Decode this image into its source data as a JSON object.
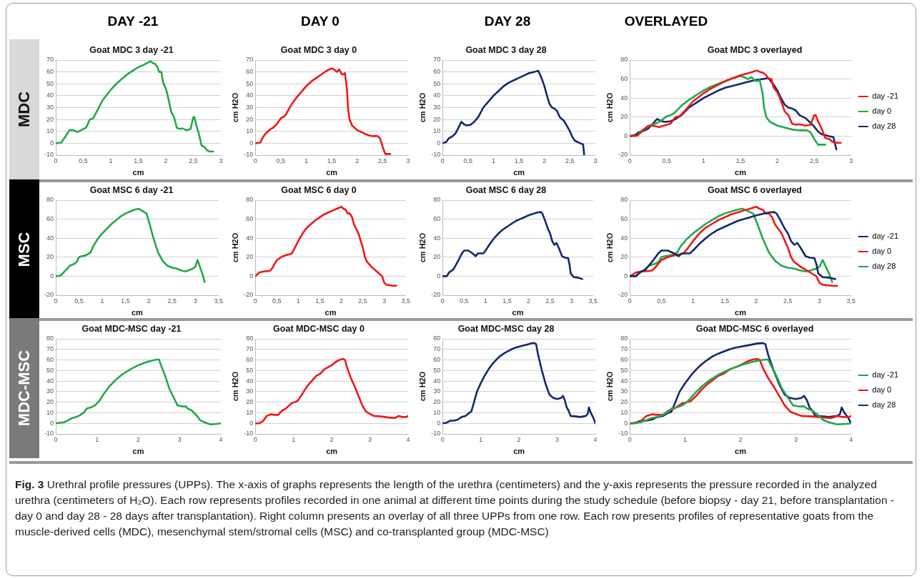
{
  "chart_data": [
    {
      "type": "line",
      "title": "Goat MDC 3 day -21",
      "xlabel": "cm",
      "xlim": [
        0,
        3
      ],
      "ylim": [
        -10,
        70
      ],
      "xticks": [
        0,
        {
          "value": 0.5,
          "label": "0,5"
        },
        1,
        {
          "value": 1.5,
          "label": "1,5"
        },
        2,
        {
          "value": 2.5,
          "label": "2,5"
        },
        3
      ],
      "yticks": [
        -10,
        0,
        10,
        20,
        30,
        40,
        50,
        60,
        70
      ],
      "grid": "y",
      "marker": "none",
      "line_style": "solid",
      "series": [
        {
          "color": "#22a84a",
          "x": [
            0,
            0.1,
            0.18,
            0.25,
            0.3,
            0.4,
            0.5,
            0.55,
            0.62,
            0.68,
            0.75,
            0.85,
            1,
            1.1,
            1.2,
            1.3,
            1.4,
            1.5,
            1.6,
            1.68,
            1.72,
            1.78,
            1.8,
            1.85,
            1.88,
            1.92,
            1.95,
            2,
            2.03,
            2.1,
            2.15,
            2.2,
            2.25,
            2.3,
            2.38,
            2.45,
            2.5,
            2.52,
            2.55,
            2.6,
            2.65,
            2.7,
            2.75,
            2.8,
            2.86
          ],
          "values": [
            0,
            0.5,
            6,
            11,
            11,
            9.5,
            12,
            13,
            20,
            21,
            27,
            36,
            45,
            50,
            54,
            58,
            61,
            64,
            66,
            68,
            69,
            67,
            67,
            64,
            60,
            60,
            51,
            46,
            41,
            26,
            22,
            13,
            12,
            12.5,
            11,
            12,
            22,
            22,
            16,
            8,
            -2,
            -3,
            -6,
            -7,
            -7
          ]
        }
      ]
    },
    {
      "type": "line",
      "title": "Goat MDC 3 day 0",
      "xlabel": "cm",
      "ylabel": "cm H2O",
      "xlim": [
        0,
        3
      ],
      "ylim": [
        -10,
        70
      ],
      "xticks": [
        0,
        {
          "value": 0.5,
          "label": "0,5"
        },
        1,
        {
          "value": 1.5,
          "label": "1,5"
        },
        2,
        {
          "value": 2.5,
          "label": "2,5"
        },
        3
      ],
      "yticks": [
        -10,
        0,
        10,
        20,
        30,
        40,
        50,
        60,
        70
      ],
      "grid": "y",
      "marker": "none",
      "line_style": "solid",
      "series": [
        {
          "color": "#f01818",
          "x": [
            0,
            0.1,
            0.15,
            0.2,
            0.3,
            0.35,
            0.42,
            0.5,
            0.55,
            0.6,
            0.7,
            0.8,
            0.9,
            1,
            1.1,
            1.2,
            1.3,
            1.4,
            1.5,
            1.55,
            1.6,
            1.65,
            1.7,
            1.73,
            1.76,
            1.8,
            1.82,
            1.85,
            1.9,
            2,
            2.1,
            2.2,
            2.3,
            2.4,
            2.45,
            2.5,
            2.55,
            2.6,
            2.65
          ],
          "values": [
            0,
            0.5,
            5,
            8,
            12,
            13,
            16,
            21,
            22,
            24,
            32,
            38,
            43,
            48,
            52,
            55,
            58,
            61,
            63,
            62,
            60,
            62,
            58,
            58,
            59,
            45,
            30,
            20,
            15,
            11,
            9,
            7,
            6,
            6,
            4,
            -3,
            -9,
            -9,
            -9
          ]
        }
      ]
    },
    {
      "type": "line",
      "title": "Goat MDC 3 day 28",
      "xlabel": "cm",
      "ylabel": "cm H2O",
      "xlim": [
        0,
        3
      ],
      "ylim": [
        -10,
        70
      ],
      "xticks": [
        0,
        {
          "value": 0.5,
          "label": "0,5"
        },
        1,
        {
          "value": 1.5,
          "label": "1,5"
        },
        2,
        {
          "value": 2.5,
          "label": "2,5"
        },
        3
      ],
      "yticks": [
        -10,
        0,
        10,
        20,
        30,
        40,
        50,
        60,
        70
      ],
      "grid": "y",
      "marker": "none",
      "line_style": "solid",
      "series": [
        {
          "color": "#14286e",
          "x": [
            0,
            0.07,
            0.12,
            0.2,
            0.25,
            0.3,
            0.37,
            0.42,
            0.47,
            0.55,
            0.62,
            0.7,
            0.8,
            0.9,
            1,
            1.1,
            1.2,
            1.3,
            1.4,
            1.5,
            1.6,
            1.7,
            1.8,
            1.88,
            1.92,
            1.95,
            2,
            2.05,
            2.1,
            2.15,
            2.2,
            2.25,
            2.3,
            2.38,
            2.45,
            2.5,
            2.55,
            2.6,
            2.7,
            2.76,
            2.78
          ],
          "values": [
            0,
            1,
            4,
            6,
            8,
            12,
            18,
            16,
            15,
            15.5,
            18,
            22,
            30,
            35,
            40,
            44,
            48,
            51,
            53,
            55,
            57,
            59,
            60,
            61,
            57,
            54,
            48,
            40,
            33,
            30,
            29,
            27,
            22,
            19,
            14,
            10,
            5,
            2,
            0,
            -1,
            -10
          ]
        }
      ]
    },
    {
      "type": "line",
      "title": "Goat MDC 3 overlayed",
      "xlabel": "cm",
      "ylabel": "cm H2O",
      "xlim": [
        0,
        3
      ],
      "ylim": [
        -20,
        80
      ],
      "xticks": [
        0,
        {
          "value": 0.5,
          "label": "0,5"
        },
        1,
        {
          "value": 1.5,
          "label": "1,5"
        },
        2,
        {
          "value": 2.5,
          "label": "2,5"
        },
        3
      ],
      "yticks": [
        -20,
        0,
        20,
        40,
        60,
        80
      ],
      "grid": "y",
      "marker": "none",
      "line_style": "solid",
      "legend": "right",
      "series": [
        {
          "name": "day -21",
          "color": "#f01818",
          "x": [
            0,
            0.1,
            0.18,
            0.25,
            0.3,
            0.4,
            0.5,
            0.55,
            0.62,
            0.68,
            0.75,
            0.85,
            1,
            1.1,
            1.2,
            1.3,
            1.4,
            1.5,
            1.6,
            1.68,
            1.72,
            1.78,
            1.8,
            1.85,
            1.88,
            1.92,
            1.95,
            2,
            2.03,
            2.1,
            2.15,
            2.2,
            2.25,
            2.3,
            2.38,
            2.45,
            2.5,
            2.52,
            2.55,
            2.6,
            2.65,
            2.7,
            2.75,
            2.8,
            2.86
          ],
          "values": [
            0,
            0.5,
            6,
            11,
            11,
            9.5,
            12,
            13,
            20,
            21,
            27,
            36,
            45,
            50,
            54,
            58,
            61,
            64,
            66,
            68,
            69,
            67,
            67,
            64,
            60,
            60,
            51,
            46,
            41,
            26,
            22,
            13,
            12,
            12.5,
            11,
            12,
            22,
            22,
            16,
            8,
            -2,
            -3,
            -6,
            -7,
            -7
          ]
        },
        {
          "name": "day 0",
          "color": "#22a84a",
          "x": [
            0,
            0.1,
            0.15,
            0.2,
            0.3,
            0.35,
            0.42,
            0.5,
            0.55,
            0.6,
            0.7,
            0.8,
            0.9,
            1,
            1.1,
            1.2,
            1.3,
            1.4,
            1.5,
            1.55,
            1.6,
            1.65,
            1.7,
            1.73,
            1.76,
            1.8,
            1.82,
            1.85,
            1.9,
            2,
            2.1,
            2.2,
            2.3,
            2.4,
            2.45,
            2.5,
            2.55,
            2.6,
            2.65
          ],
          "values": [
            0,
            0.5,
            5,
            8,
            12,
            13,
            16,
            21,
            22,
            24,
            32,
            38,
            43,
            48,
            52,
            55,
            58,
            61,
            63,
            62,
            60,
            62,
            58,
            58,
            59,
            45,
            30,
            20,
            15,
            11,
            9,
            7,
            6,
            6,
            4,
            -3,
            -9,
            -9,
            -9
          ]
        },
        {
          "name": "day 28",
          "color": "#14286e",
          "x": [
            0,
            0.07,
            0.12,
            0.2,
            0.25,
            0.3,
            0.37,
            0.42,
            0.47,
            0.55,
            0.62,
            0.7,
            0.8,
            0.9,
            1,
            1.1,
            1.2,
            1.3,
            1.4,
            1.5,
            1.6,
            1.7,
            1.8,
            1.88,
            1.92,
            1.95,
            2,
            2.05,
            2.1,
            2.15,
            2.2,
            2.25,
            2.3,
            2.38,
            2.45,
            2.5,
            2.55,
            2.6,
            2.7,
            2.76,
            2.8
          ],
          "values": [
            0,
            1,
            4,
            6,
            8,
            12,
            18,
            16,
            15,
            15.5,
            18,
            22,
            30,
            35,
            40,
            44,
            48,
            51,
            53,
            55,
            57,
            59,
            60,
            61,
            57,
            54,
            48,
            40,
            33,
            30,
            29,
            27,
            22,
            19,
            14,
            10,
            5,
            2,
            0,
            -1,
            -14
          ]
        }
      ]
    },
    {
      "type": "line",
      "title": "Goat MSC 6 day -21",
      "xlabel": "cm",
      "xlim": [
        0,
        3.5
      ],
      "ylim": [
        -20,
        80
      ],
      "xticks": [
        0,
        {
          "value": 0.5,
          "label": "0,5"
        },
        1,
        {
          "value": 1.5,
          "label": "1,5"
        },
        2,
        {
          "value": 2.5,
          "label": "2,5"
        },
        3,
        {
          "value": 3.5,
          "label": "3,5"
        }
      ],
      "yticks": [
        -20,
        0,
        20,
        40,
        60,
        80
      ],
      "grid": "y",
      "marker": "none",
      "line_style": "solid",
      "series": [
        {
          "color": "#22a84a",
          "x": [
            0,
            0.1,
            0.15,
            0.25,
            0.3,
            0.4,
            0.45,
            0.5,
            0.55,
            0.65,
            0.75,
            0.8,
            0.9,
            1,
            1.1,
            1.2,
            1.3,
            1.4,
            1.5,
            1.6,
            1.7,
            1.78,
            1.85,
            1.95,
            2,
            2.1,
            2.2,
            2.3,
            2.4,
            2.5,
            2.6,
            2.7,
            2.78,
            2.85,
            2.95,
            3,
            3.05,
            3.1,
            3.15,
            3.2
          ],
          "values": [
            0,
            0.5,
            3,
            8,
            11,
            13,
            15,
            20,
            21,
            22,
            25,
            31,
            39,
            45,
            50,
            55,
            59,
            63,
            66,
            68,
            70,
            71,
            69,
            66,
            58,
            40,
            25,
            16,
            11,
            9,
            8,
            6,
            5,
            6,
            8,
            10,
            17,
            10,
            3,
            -6
          ]
        }
      ]
    },
    {
      "type": "line",
      "title": "Goat MSC 6 day 0",
      "xlabel": "cm",
      "ylabel": "cm H2O",
      "xlim": [
        0,
        3.5
      ],
      "ylim": [
        -20,
        80
      ],
      "xticks": [
        0,
        {
          "value": 0.5,
          "label": "0,5"
        },
        1,
        {
          "value": 1.5,
          "label": "1,5"
        },
        2,
        {
          "value": 2.5,
          "label": "2,5"
        },
        3,
        {
          "value": 3.5,
          "label": "3,5"
        }
      ],
      "yticks": [
        -20,
        0,
        20,
        40,
        60,
        80
      ],
      "grid": "y",
      "marker": "none",
      "line_style": "solid",
      "series": [
        {
          "color": "#f01818",
          "x": [
            0,
            0.05,
            0.1,
            0.2,
            0.3,
            0.35,
            0.4,
            0.5,
            0.6,
            0.7,
            0.8,
            0.85,
            0.9,
            1,
            1.1,
            1.2,
            1.3,
            1.4,
            1.5,
            1.6,
            1.7,
            1.8,
            1.9,
            2,
            2.05,
            2.1,
            2.15,
            2.2,
            2.25,
            2.3,
            2.4,
            2.5,
            2.55,
            2.6,
            2.7,
            2.8,
            2.9,
            2.95,
            3,
            3.05,
            3.2,
            3.28
          ],
          "values": [
            0,
            2,
            4,
            5,
            5.5,
            6,
            9,
            17,
            20,
            22,
            23,
            24,
            28,
            37,
            45,
            51,
            55,
            59,
            62,
            65,
            67,
            69,
            71,
            73,
            71,
            70,
            66,
            66,
            62,
            54,
            45,
            30,
            20,
            15,
            10,
            6,
            2,
            0,
            -7,
            -9,
            -10,
            -10
          ]
        }
      ]
    },
    {
      "type": "line",
      "title": "Goat MSC 6 day 28",
      "xlabel": "cm",
      "ylabel": "cm H2O",
      "xlim": [
        0,
        3.5
      ],
      "ylim": [
        -20,
        80
      ],
      "xticks": [
        0,
        {
          "value": 0.5,
          "label": "0,5"
        },
        1,
        {
          "value": 1.5,
          "label": "1,5"
        },
        2,
        {
          "value": 2.5,
          "label": "2,5"
        },
        3,
        {
          "value": 3.5,
          "label": "3,5"
        }
      ],
      "yticks": [
        -20,
        0,
        20,
        40,
        60,
        80
      ],
      "grid": "y",
      "marker": "none",
      "line_style": "solid",
      "series": [
        {
          "color": "#14286e",
          "x": [
            0,
            0.1,
            0.15,
            0.25,
            0.35,
            0.45,
            0.5,
            0.6,
            0.7,
            0.77,
            0.82,
            0.9,
            0.95,
            1,
            1.1,
            1.2,
            1.3,
            1.4,
            1.5,
            1.6,
            1.7,
            1.8,
            1.9,
            2,
            2.1,
            2.2,
            2.28,
            2.32,
            2.38,
            2.45,
            2.5,
            2.55,
            2.6,
            2.65,
            2.7,
            2.78,
            2.85,
            2.92,
            2.95,
            2.98,
            3.05,
            3.15,
            3.25
          ],
          "values": [
            0,
            0,
            4,
            7,
            15,
            24,
            27,
            27,
            24,
            21,
            24,
            24,
            24,
            27,
            34,
            40,
            45,
            49,
            52,
            55,
            58,
            60,
            62,
            64,
            65.5,
            67,
            67.5,
            66,
            59,
            50,
            45,
            37,
            33,
            35,
            30,
            21,
            19.5,
            19,
            13,
            3,
            -1,
            -1.5,
            -3
          ]
        }
      ]
    },
    {
      "type": "line",
      "title": "Goat MSC 6 overlayed",
      "xlabel": "cm",
      "ylabel": "cm H2O",
      "xlim": [
        0,
        3.5
      ],
      "ylim": [
        -20,
        80
      ],
      "xticks": [
        0,
        {
          "value": 0.5,
          "label": "0,5"
        },
        1,
        {
          "value": 1.5,
          "label": "1,5"
        },
        2,
        {
          "value": 2.5,
          "label": "2,5"
        },
        3,
        {
          "value": 3.5,
          "label": "3,5"
        }
      ],
      "yticks": [
        -20,
        0,
        20,
        40,
        60,
        80
      ],
      "grid": "y",
      "marker": "none",
      "line_style": "solid",
      "legend": "right",
      "series": [
        {
          "name": "day -21",
          "color": "#14286e",
          "x": [
            0,
            0.1,
            0.15,
            0.25,
            0.35,
            0.45,
            0.5,
            0.6,
            0.7,
            0.77,
            0.82,
            0.9,
            0.95,
            1,
            1.1,
            1.2,
            1.3,
            1.4,
            1.5,
            1.6,
            1.7,
            1.8,
            1.9,
            2,
            2.1,
            2.2,
            2.28,
            2.32,
            2.38,
            2.45,
            2.5,
            2.55,
            2.6,
            2.65,
            2.7,
            2.78,
            2.85,
            2.92,
            2.95,
            2.98,
            3.05,
            3.15,
            3.25
          ],
          "values": [
            0,
            0,
            4,
            7,
            15,
            24,
            27,
            27,
            24,
            21,
            24,
            24,
            24,
            27,
            34,
            40,
            45,
            49,
            52,
            55,
            58,
            60,
            62,
            64,
            65.5,
            67,
            67.5,
            66,
            59,
            50,
            45,
            37,
            33,
            35,
            30,
            21,
            19.5,
            19,
            13,
            3,
            -1,
            -1.5,
            -3
          ]
        },
        {
          "name": "day 0",
          "color": "#f01818",
          "x": [
            0,
            0.05,
            0.1,
            0.2,
            0.3,
            0.35,
            0.4,
            0.5,
            0.6,
            0.7,
            0.8,
            0.85,
            0.9,
            1,
            1.1,
            1.2,
            1.3,
            1.4,
            1.5,
            1.6,
            1.7,
            1.8,
            1.9,
            2,
            2.05,
            2.1,
            2.15,
            2.2,
            2.25,
            2.3,
            2.4,
            2.5,
            2.55,
            2.6,
            2.7,
            2.8,
            2.9,
            2.95,
            3,
            3.05,
            3.2,
            3.28
          ],
          "values": [
            0,
            2,
            4,
            5,
            5.5,
            6,
            9,
            17,
            20,
            22,
            23,
            24,
            28,
            37,
            45,
            51,
            55,
            59,
            62,
            65,
            67,
            69,
            71,
            73,
            71,
            70,
            66,
            66,
            62,
            54,
            45,
            30,
            20,
            15,
            10,
            6,
            2,
            0,
            -7,
            -9,
            -10,
            -10
          ]
        },
        {
          "name": "day 28",
          "color": "#22a84a",
          "x": [
            0,
            0.1,
            0.15,
            0.25,
            0.3,
            0.4,
            0.45,
            0.5,
            0.55,
            0.65,
            0.75,
            0.8,
            0.9,
            1,
            1.1,
            1.2,
            1.3,
            1.4,
            1.5,
            1.6,
            1.7,
            1.78,
            1.85,
            1.95,
            2,
            2.1,
            2.2,
            2.3,
            2.4,
            2.5,
            2.6,
            2.7,
            2.78,
            2.85,
            2.95,
            3,
            3.05,
            3.1,
            3.15,
            3.2
          ],
          "values": [
            0,
            0.5,
            3,
            8,
            11,
            13,
            15,
            20,
            21,
            22,
            25,
            31,
            39,
            45,
            50,
            55,
            59,
            63,
            66,
            68,
            70,
            71,
            69,
            66,
            58,
            40,
            25,
            16,
            11,
            9,
            8,
            6,
            5,
            6,
            8,
            10,
            17,
            10,
            3,
            -6
          ]
        }
      ]
    },
    {
      "type": "line",
      "title": "Goat MDC-MSC day -21",
      "xlabel": "cm",
      "xlim": [
        0,
        4
      ],
      "ylim": [
        -10,
        80
      ],
      "xticks": [
        0,
        1,
        2,
        3,
        4
      ],
      "yticks": [
        -10,
        0,
        10,
        20,
        30,
        40,
        50,
        60,
        70,
        80
      ],
      "grid": "y",
      "marker": "none",
      "line_style": "solid",
      "series": [
        {
          "color": "#22a84a",
          "x": [
            0,
            0.2,
            0.3,
            0.4,
            0.5,
            0.6,
            0.7,
            0.75,
            0.85,
            0.95,
            1.05,
            1.15,
            1.3,
            1.45,
            1.6,
            1.8,
            2,
            2.2,
            2.4,
            2.5,
            2.55,
            2.65,
            2.75,
            2.85,
            2.95,
            3.05,
            3.15,
            3.2,
            3.3,
            3.4,
            3.5,
            3.6,
            3.75,
            3.9,
            4
          ],
          "values": [
            0,
            1,
            3,
            5,
            6,
            8,
            11,
            14,
            15,
            17,
            21,
            27,
            35,
            41,
            46,
            51,
            55,
            58,
            60,
            60.5,
            55,
            45,
            33,
            25,
            17,
            16,
            16,
            14,
            12,
            8,
            3,
            1,
            -1,
            -0.5,
            0
          ]
        }
      ]
    },
    {
      "type": "line",
      "title": "Goat MDC-MSC day 0",
      "xlabel": "cm",
      "ylabel": "cm H2O",
      "xlim": [
        0,
        4
      ],
      "ylim": [
        -10,
        80
      ],
      "xticks": [
        0,
        1,
        2,
        3,
        4
      ],
      "yticks": [
        -10,
        0,
        10,
        20,
        30,
        40,
        50,
        60,
        70,
        80
      ],
      "grid": "y",
      "marker": "none",
      "line_style": "solid",
      "series": [
        {
          "color": "#f01818",
          "x": [
            0,
            0.1,
            0.2,
            0.3,
            0.4,
            0.5,
            0.6,
            0.7,
            0.8,
            0.95,
            1.1,
            1.2,
            1.3,
            1.4,
            1.5,
            1.6,
            1.7,
            1.8,
            1.9,
            2,
            2.1,
            2.2,
            2.3,
            2.35,
            2.4,
            2.5,
            2.6,
            2.7,
            2.8,
            2.9,
            3,
            3.1,
            3.3,
            3.5,
            3.65,
            3.75,
            3.85,
            3.95,
            4
          ],
          "values": [
            0,
            0,
            2,
            7,
            8.5,
            8,
            8,
            12,
            14,
            19,
            21,
            26,
            32,
            37,
            41,
            45,
            47,
            51,
            53,
            55,
            58,
            60,
            61,
            60,
            53,
            43,
            35,
            26,
            17,
            11,
            9,
            7,
            6.5,
            5.5,
            5,
            7,
            6,
            6,
            7
          ]
        }
      ]
    },
    {
      "type": "line",
      "title": "Goat MDC-MSC day 28",
      "xlabel": "cm",
      "ylabel": "cm H2O",
      "xlim": [
        0,
        4
      ],
      "ylim": [
        -10,
        80
      ],
      "xticks": [
        0,
        1,
        2,
        3,
        4
      ],
      "yticks": [
        -10,
        0,
        10,
        20,
        30,
        40,
        50,
        60,
        70,
        80
      ],
      "grid": "y",
      "marker": "none",
      "line_style": "solid",
      "series": [
        {
          "color": "#14286e",
          "x": [
            0,
            0.1,
            0.2,
            0.3,
            0.4,
            0.5,
            0.6,
            0.7,
            0.75,
            0.8,
            0.9,
            1,
            1.1,
            1.2,
            1.3,
            1.4,
            1.5,
            1.6,
            1.7,
            1.8,
            1.9,
            2,
            2.1,
            2.2,
            2.3,
            2.4,
            2.45,
            2.5,
            2.6,
            2.7,
            2.8,
            2.9,
            3,
            3.1,
            3.15,
            3.2,
            3.25,
            3.3,
            3.35,
            3.5,
            3.6,
            3.75,
            3.8,
            3.83,
            3.88,
            3.95,
            4
          ],
          "values": [
            0,
            0.5,
            2.5,
            2.5,
            3.5,
            6,
            7,
            10,
            11,
            17,
            30,
            38,
            45,
            51,
            56,
            60,
            63.5,
            66,
            68,
            70,
            71.5,
            72.5,
            73.5,
            74.5,
            75.5,
            76,
            75,
            65,
            50,
            37,
            27,
            24,
            23,
            24,
            26,
            22,
            15,
            12,
            7,
            6.5,
            6,
            7,
            9,
            15,
            10,
            5,
            0
          ]
        }
      ]
    },
    {
      "type": "line",
      "title": "Goat MDC-MSC 6 overlayed",
      "xlabel": "cm",
      "ylabel": "cm H2O",
      "xlim": [
        0,
        4
      ],
      "ylim": [
        -10,
        80
      ],
      "xticks": [
        0,
        1,
        2,
        3,
        4
      ],
      "yticks": [
        -10,
        0,
        10,
        20,
        30,
        40,
        50,
        60,
        70,
        80
      ],
      "grid": "y",
      "marker": "none",
      "line_style": "solid",
      "legend": "right",
      "series": [
        {
          "name": "day -21",
          "color": "#22a84a",
          "x": [
            0,
            0.2,
            0.3,
            0.4,
            0.5,
            0.6,
            0.7,
            0.75,
            0.85,
            0.95,
            1.05,
            1.15,
            1.3,
            1.45,
            1.6,
            1.8,
            2,
            2.2,
            2.4,
            2.5,
            2.55,
            2.65,
            2.75,
            2.85,
            2.95,
            3.05,
            3.15,
            3.2,
            3.3,
            3.4,
            3.5,
            3.6,
            3.75,
            3.9,
            4
          ],
          "values": [
            0,
            1,
            3,
            5,
            6,
            8,
            11,
            14,
            15,
            17,
            21,
            27,
            35,
            41,
            46,
            51,
            55,
            58,
            60,
            60.5,
            55,
            45,
            33,
            25,
            17,
            16,
            16,
            14,
            12,
            8,
            3,
            1,
            -1,
            -0.5,
            0
          ]
        },
        {
          "name": "day 0",
          "color": "#f01818",
          "x": [
            0,
            0.1,
            0.2,
            0.3,
            0.4,
            0.5,
            0.6,
            0.7,
            0.8,
            0.95,
            1.1,
            1.2,
            1.3,
            1.4,
            1.5,
            1.6,
            1.7,
            1.8,
            1.9,
            2,
            2.1,
            2.2,
            2.3,
            2.35,
            2.4,
            2.5,
            2.6,
            2.7,
            2.8,
            2.9,
            3,
            3.1,
            3.3,
            3.5,
            3.65,
            3.75,
            3.85,
            3.95,
            4
          ],
          "values": [
            0,
            0,
            2,
            7,
            8.5,
            8,
            8,
            12,
            14,
            19,
            21,
            26,
            32,
            37,
            41,
            45,
            47,
            51,
            53,
            55,
            58,
            60,
            61,
            60,
            53,
            43,
            35,
            26,
            17,
            11,
            9,
            7,
            6.5,
            5.5,
            5,
            7,
            6,
            6,
            7
          ]
        },
        {
          "name": "day 28",
          "color": "#14286e",
          "x": [
            0,
            0.1,
            0.2,
            0.3,
            0.4,
            0.5,
            0.6,
            0.7,
            0.75,
            0.8,
            0.9,
            1,
            1.1,
            1.2,
            1.3,
            1.4,
            1.5,
            1.6,
            1.7,
            1.8,
            1.9,
            2,
            2.1,
            2.2,
            2.3,
            2.4,
            2.45,
            2.5,
            2.6,
            2.7,
            2.8,
            2.9,
            3,
            3.1,
            3.15,
            3.2,
            3.25,
            3.3,
            3.35,
            3.5,
            3.6,
            3.75,
            3.8,
            3.83,
            3.88,
            3.95,
            4
          ],
          "values": [
            0,
            0.5,
            2.5,
            2.5,
            3.5,
            6,
            7,
            10,
            11,
            17,
            30,
            38,
            45,
            51,
            56,
            60,
            63.5,
            66,
            68,
            70,
            71.5,
            72.5,
            73.5,
            74.5,
            75.5,
            76,
            75,
            65,
            50,
            37,
            27,
            24,
            23,
            24,
            26,
            22,
            15,
            12,
            7,
            6.5,
            6,
            7,
            9,
            15,
            10,
            5,
            0
          ]
        }
      ]
    },
    {
      "type": "other",
      "annotations": [
        "DAY -21",
        "DAY 0",
        "DAY 28",
        "OVERLAYED",
        "MDC",
        "MSC",
        "MDC-MSC",
        "Fig. 3",
        "Urethral profile pressures (UPPs). The x-axis of graphs represents the length of the urethra (centimeters) and the y-axis represents the pressure recorded in the analyzed urethra (centimeters of H₂O). Each row represents profiles recorded in one animal at different time points during the study schedule (before biopsy - day 21, before transplantation - day 0 and day 28 - 28 days after transplantation). Right column presents an overlay of all three UPPs from one row. Each row presents profiles of representative goats from the muscle-derived cells (MDC), mesenchymal stem/stromal cells (MSC) and co-transplanted group (MDC-MSC)"
      ]
    }
  ]
}
